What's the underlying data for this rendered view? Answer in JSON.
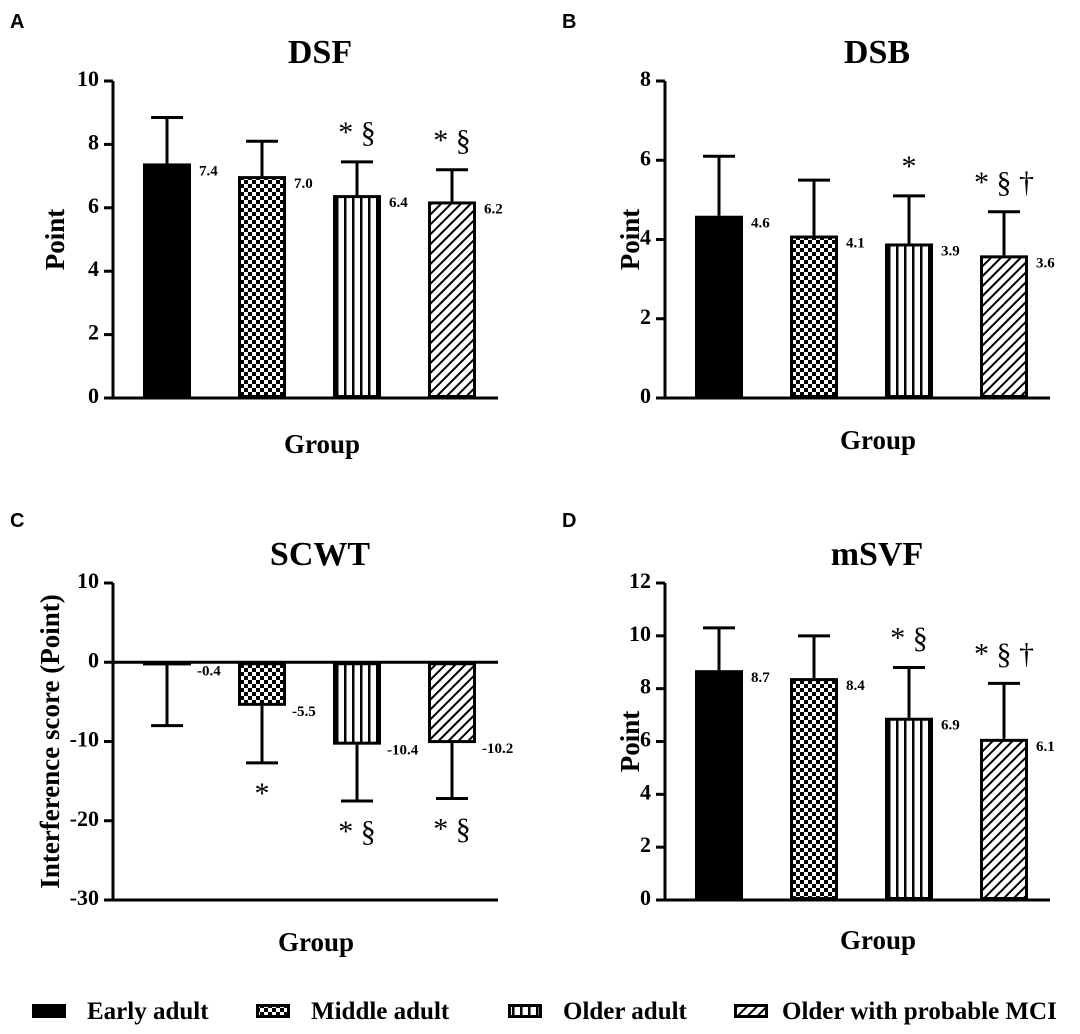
{
  "colors": {
    "ink": "#000000",
    "background": "#ffffff"
  },
  "legend": [
    {
      "label": "Early adult",
      "pattern": "solid"
    },
    {
      "label": "Middle adult",
      "pattern": "checker"
    },
    {
      "label": "Older adult",
      "pattern": "vertical"
    },
    {
      "label": "Older with probable MCI",
      "pattern": "diagonal"
    }
  ],
  "chart_data": [
    {
      "type": "bar",
      "panel": "A",
      "title": "DSF",
      "xlabel": "Group",
      "ylabel": "Point",
      "ylim": [
        0,
        10
      ],
      "yticks": [
        0,
        2,
        4,
        6,
        8,
        10
      ],
      "categories": [
        "Early adult",
        "Middle adult",
        "Older adult",
        "Older with probable MCI"
      ],
      "values": [
        7.4,
        7.0,
        6.4,
        6.2
      ],
      "value_labels": [
        "7.4",
        "7.0",
        "6.4",
        "6.2"
      ],
      "error_high": [
        8.85,
        8.1,
        7.45,
        7.2
      ],
      "significance": [
        "",
        "",
        "* §",
        "* §"
      ]
    },
    {
      "type": "bar",
      "panel": "B",
      "title": "DSB",
      "xlabel": "Group",
      "ylabel": "Point",
      "ylim": [
        0,
        8
      ],
      "yticks": [
        0,
        2,
        4,
        6,
        8
      ],
      "categories": [
        "Early adult",
        "Middle adult",
        "Older adult",
        "Older with probable MCI"
      ],
      "values": [
        4.6,
        4.1,
        3.9,
        3.6
      ],
      "value_labels": [
        "4.6",
        "4.1",
        "3.9",
        "3.6"
      ],
      "error_high": [
        6.1,
        5.5,
        5.1,
        4.7
      ],
      "significance": [
        "",
        "",
        "*",
        "* § †"
      ]
    },
    {
      "type": "bar",
      "panel": "C",
      "title": "SCWT",
      "xlabel": "Group",
      "ylabel": "Interference score (Point)",
      "ylim": [
        -30,
        10
      ],
      "yticks": [
        -30,
        -20,
        -10,
        0,
        10
      ],
      "categories": [
        "Early adult",
        "Middle adult",
        "Older adult",
        "Older with probable MCI"
      ],
      "values": [
        -0.4,
        -5.5,
        -10.4,
        -10.2
      ],
      "value_labels": [
        "-0.4",
        "-5.5",
        "-10.4",
        "-10.2"
      ],
      "error_low": [
        -8.0,
        -12.7,
        -17.5,
        -17.2
      ],
      "significance": [
        "",
        "*",
        "* §",
        "* §"
      ]
    },
    {
      "type": "bar",
      "panel": "D",
      "title": "mSVF",
      "xlabel": "Group",
      "ylabel": "Point",
      "ylim": [
        0,
        12
      ],
      "yticks": [
        0,
        2,
        4,
        6,
        8,
        10,
        12
      ],
      "categories": [
        "Early adult",
        "Middle adult",
        "Older adult",
        "Older with probable MCI"
      ],
      "values": [
        8.7,
        8.4,
        6.9,
        6.1
      ],
      "value_labels": [
        "8.7",
        "8.4",
        "6.9",
        "6.1"
      ],
      "error_high": [
        10.3,
        10.0,
        8.8,
        8.2
      ],
      "significance": [
        "",
        "",
        "* §",
        "* § †"
      ]
    }
  ]
}
